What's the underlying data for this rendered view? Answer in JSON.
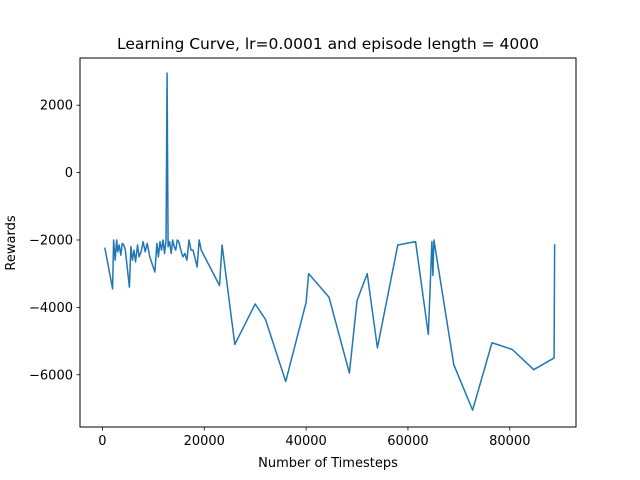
{
  "chart_data": {
    "type": "line",
    "title": "Learning Curve, lr=0.0001 and episode length = 4000",
    "xlabel": "Number of Timesteps",
    "ylabel": "Rewards",
    "xlim": [
      -4400,
      93000
    ],
    "ylim": [
      -7550,
      3400
    ],
    "xticks": [
      0,
      20000,
      40000,
      60000,
      80000
    ],
    "xtick_labels": [
      "0",
      "20000",
      "40000",
      "60000",
      "80000"
    ],
    "yticks": [
      2000,
      0,
      -2000,
      -4000,
      -6000
    ],
    "ytick_labels": [
      "2000",
      "0",
      "−2000",
      "−4000",
      "−6000"
    ],
    "grid": false,
    "series": [
      {
        "color": "#1f77b4",
        "x": [
          500,
          2000,
          2200,
          2500,
          2800,
          3000,
          3300,
          3600,
          3900,
          4200,
          4500,
          5300,
          5600,
          5900,
          6200,
          6500,
          6900,
          7200,
          7600,
          8000,
          8400,
          8800,
          9300,
          10300,
          10700,
          11000,
          11300,
          11600,
          11900,
          12200,
          12500,
          12700,
          12900,
          13200,
          13500,
          13800,
          14100,
          14400,
          14700,
          15000,
          15400,
          15800,
          16200,
          16600,
          17000,
          17400,
          17800,
          18200,
          18600,
          19000,
          19400,
          23000,
          23500,
          26000,
          30000,
          32000,
          36000,
          40000,
          40500,
          44500,
          48500,
          50000,
          52000,
          54000,
          58000,
          61500,
          64000,
          64700,
          64900,
          65100,
          69000,
          72700,
          76500,
          80500,
          84700,
          88700,
          88800
        ],
        "y": [
          -2250,
          -3450,
          -2000,
          -2600,
          -2000,
          -2350,
          -2150,
          -2450,
          -2100,
          -2150,
          -2300,
          -3400,
          -2200,
          -2600,
          -2300,
          -2650,
          -2150,
          -2500,
          -2350,
          -2050,
          -2350,
          -2100,
          -2500,
          -2950,
          -2100,
          -2500,
          -2050,
          -2300,
          -2000,
          -2400,
          -2000,
          2950,
          -2200,
          -2050,
          -2400,
          -2000,
          -2200,
          -2300,
          -2000,
          -2050,
          -2300,
          -2500,
          -2400,
          -2600,
          -2000,
          -2300,
          -2300,
          -2550,
          -2800,
          -2000,
          -2300,
          -3350,
          -2150,
          -5100,
          -3900,
          -4350,
          -6200,
          -3850,
          -3000,
          -3700,
          -5950,
          -3800,
          -3000,
          -5200,
          -2150,
          -2050,
          -4800,
          -2050,
          -3050,
          -2000,
          -5700,
          -7050,
          -5050,
          -5250,
          -5850,
          -5500,
          -2150
        ]
      }
    ]
  }
}
